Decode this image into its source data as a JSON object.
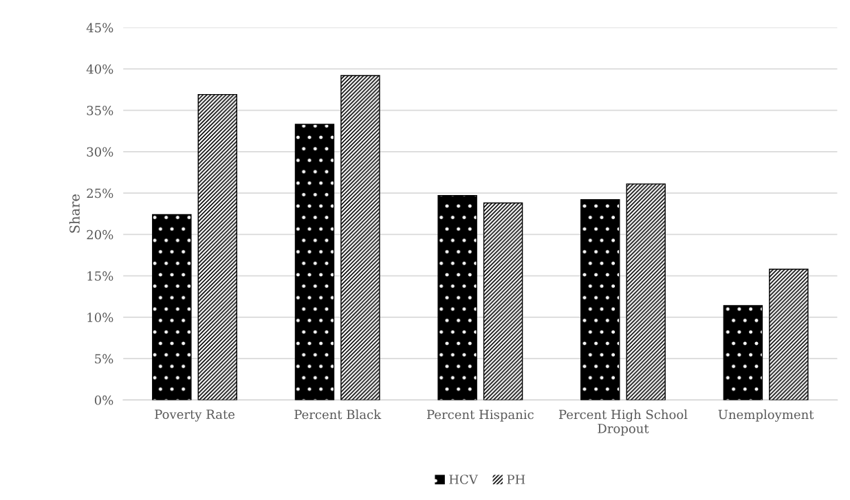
{
  "chart_data": {
    "type": "bar",
    "ylabel": "Share",
    "categories": [
      "Poverty Rate",
      "Percent Black",
      "Percent Hispanic",
      "Percent High School\nDropout",
      "Unemployment"
    ],
    "series": [
      {
        "name": "HCV",
        "color": "#000000",
        "values": [
          22.4,
          33.3,
          24.7,
          24.2,
          11.4
        ]
      },
      {
        "name": "PH",
        "color": "#ffffff",
        "values": [
          36.9,
          39.2,
          23.8,
          26.1,
          15.8
        ]
      }
    ],
    "ylim": [
      0,
      45
    ],
    "yticks": [
      {
        "value": 0,
        "label": "0%"
      },
      {
        "value": 5,
        "label": "5%"
      },
      {
        "value": 10,
        "label": "10%"
      },
      {
        "value": 15,
        "label": "15%"
      },
      {
        "value": 20,
        "label": "20%"
      },
      {
        "value": 25,
        "label": "25%"
      },
      {
        "value": 30,
        "label": "30%"
      },
      {
        "value": 35,
        "label": "35%"
      },
      {
        "value": 40,
        "label": "40%"
      },
      {
        "value": 45,
        "label": "45%"
      }
    ],
    "grid": "y",
    "legend": "bottom"
  }
}
